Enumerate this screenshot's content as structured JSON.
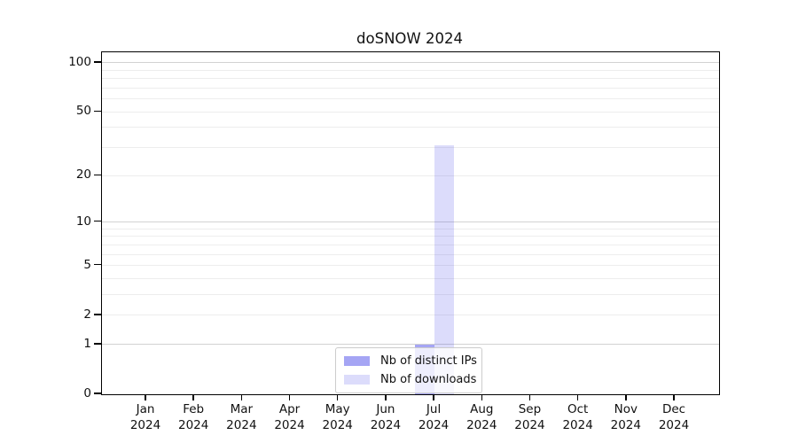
{
  "chart_data": {
    "type": "bar",
    "title": "doSNOW 2024",
    "x_axis": {
      "months": [
        "Jan",
        "Feb",
        "Mar",
        "Apr",
        "May",
        "Jun",
        "Jul",
        "Aug",
        "Sep",
        "Oct",
        "Nov",
        "Dec"
      ],
      "year": "2024"
    },
    "y_axis": {
      "scale": "log1p",
      "ticks": [
        0,
        1,
        2,
        5,
        10,
        20,
        50,
        100
      ],
      "minor_gridlines": [
        2,
        3,
        4,
        5,
        6,
        7,
        8,
        9,
        20,
        30,
        40,
        50,
        60,
        70,
        80,
        90
      ],
      "major_gridlines": [
        1,
        10,
        100
      ],
      "ylim": [
        0,
        116
      ]
    },
    "series": [
      {
        "name": "Nb of distinct IPs",
        "color": "rgba(40,40,228,0.42)",
        "color_hex": "#a5a5f2",
        "values": [
          0,
          0,
          0,
          0,
          0,
          0,
          1,
          0,
          0,
          0,
          0,
          0
        ]
      },
      {
        "name": "Nb of downloads",
        "color": "rgba(40,40,228,0.16)",
        "color_hex": "#dcdcf8",
        "values": [
          0,
          0,
          0,
          0,
          0,
          0,
          31,
          0,
          0,
          0,
          0,
          0
        ]
      }
    ],
    "legend": {
      "position": "bottom-center",
      "entries": [
        "Nb of distinct IPs",
        "Nb of downloads"
      ]
    },
    "colors": {
      "frame": "#000000",
      "major_grid": "#d2d2d2",
      "minor_grid": "#ededed",
      "background": "#ffffff"
    }
  }
}
